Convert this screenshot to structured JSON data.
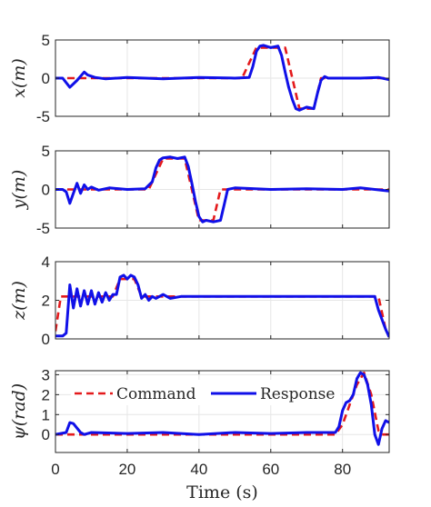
{
  "colors": {
    "command": "#e41a1c",
    "response": "#1010e8",
    "axis": "#262626",
    "grid": "#e6e6e6"
  },
  "chart_data": [
    {
      "type": "line",
      "ylabel": "x(m)",
      "xlim": [
        0,
        93
      ],
      "ylim": [
        -5,
        5
      ],
      "yticks": [
        -5,
        0,
        5
      ],
      "grid": true,
      "series": [
        {
          "name": "Command",
          "style": "dashed",
          "x": [
            0,
            52,
            54,
            56,
            64,
            66,
            68,
            72,
            74,
            76,
            93
          ],
          "y": [
            0,
            0,
            2,
            4,
            4,
            0,
            -4,
            -4,
            0,
            0,
            0
          ]
        },
        {
          "name": "Response",
          "style": "solid",
          "x": [
            0,
            2,
            4,
            6,
            8,
            9,
            11,
            14,
            20,
            30,
            40,
            50,
            54,
            55,
            56,
            57,
            58,
            60,
            62,
            63,
            64,
            65,
            66,
            67,
            68,
            70,
            72,
            73,
            74,
            75,
            76,
            80,
            85,
            90,
            93
          ],
          "y": [
            0,
            0,
            -1.2,
            -0.3,
            0.8,
            0.4,
            0.1,
            -0.1,
            0.1,
            -0.1,
            0.1,
            0,
            0.1,
            1.5,
            3.5,
            4.2,
            4.3,
            4.0,
            4.2,
            3.0,
            0.8,
            -1.2,
            -2.8,
            -4.0,
            -4.2,
            -3.8,
            -4.0,
            -2.0,
            -0.3,
            0.2,
            0,
            0,
            0,
            0.1,
            -0.2
          ]
        }
      ]
    },
    {
      "type": "line",
      "ylabel": "y(m)",
      "xlim": [
        0,
        93
      ],
      "ylim": [
        -5,
        5
      ],
      "yticks": [
        -5,
        0,
        5
      ],
      "grid": true,
      "series": [
        {
          "name": "Command",
          "style": "dashed",
          "x": [
            0,
            26,
            28,
            30,
            36,
            38,
            40,
            44,
            46,
            48,
            93
          ],
          "y": [
            0,
            0,
            2,
            4,
            4,
            0,
            -4,
            -4,
            0,
            0,
            0
          ]
        },
        {
          "name": "Response",
          "style": "solid",
          "x": [
            0,
            2,
            3,
            4,
            5,
            6,
            7,
            8,
            9,
            10,
            12,
            15,
            20,
            25,
            27,
            28,
            29,
            30,
            32,
            34,
            36,
            37,
            38,
            39,
            40,
            41,
            42,
            44,
            46,
            47,
            48,
            50,
            60,
            70,
            80,
            85,
            93
          ],
          "y": [
            0,
            0,
            -0.3,
            -1.8,
            -0.5,
            0.8,
            -0.5,
            0.6,
            0,
            0.3,
            -0.1,
            0.2,
            0,
            0.1,
            1.0,
            2.8,
            3.8,
            4.1,
            4.2,
            4.0,
            4.2,
            3.0,
            0.8,
            -1.5,
            -3.5,
            -4.2,
            -4.0,
            -4.2,
            -4.0,
            -2.0,
            0,
            0.2,
            0,
            0.1,
            0,
            0.2,
            -0.2
          ]
        }
      ]
    },
    {
      "type": "line",
      "ylabel": "z(m)",
      "xlim": [
        0,
        93
      ],
      "ylim": [
        0,
        4
      ],
      "yticks": [
        0,
        2,
        4
      ],
      "grid": true,
      "series": [
        {
          "name": "Command",
          "style": "dashed",
          "x": [
            0,
            1.5,
            3,
            16,
            18,
            22,
            24,
            26,
            90,
            92,
            93
          ],
          "y": [
            0.4,
            2.2,
            2.2,
            2.2,
            3.1,
            3.1,
            2.2,
            2.2,
            2.2,
            0.5,
            0.1
          ]
        },
        {
          "name": "Response",
          "style": "solid",
          "x": [
            0,
            2,
            3,
            4,
            5,
            6,
            7,
            8,
            9,
            10,
            11,
            12,
            13,
            14,
            15,
            16,
            17,
            18,
            19,
            20,
            21,
            22,
            23,
            24,
            25,
            26,
            27,
            28,
            30,
            32,
            35,
            40,
            45,
            50,
            60,
            70,
            80,
            89,
            90,
            92,
            93
          ],
          "y": [
            0.15,
            0.15,
            0.3,
            2.8,
            1.6,
            2.6,
            1.7,
            2.5,
            1.8,
            2.5,
            1.8,
            2.4,
            1.9,
            2.4,
            2.0,
            2.3,
            2.3,
            3.2,
            3.3,
            3.1,
            3.3,
            3.2,
            2.8,
            2.1,
            2.3,
            2.0,
            2.2,
            2.1,
            2.3,
            2.1,
            2.2,
            2.2,
            2.2,
            2.2,
            2.2,
            2.2,
            2.2,
            2.2,
            1.5,
            0.5,
            0.1
          ]
        }
      ]
    },
    {
      "type": "line",
      "ylabel": "ψ(rad)",
      "xlim": [
        0,
        93
      ],
      "ylim": [
        -0.9,
        3.2
      ],
      "yticks": [
        0,
        1,
        2,
        3
      ],
      "grid": true,
      "xlabel": "Time (s)",
      "xticks": [
        0,
        20,
        40,
        60,
        80
      ],
      "legend": {
        "position": "top",
        "entries": [
          "Command",
          "Response"
        ]
      },
      "series": [
        {
          "name": "Command",
          "style": "dashed",
          "x": [
            0,
            78,
            80,
            82,
            84,
            86,
            88,
            90,
            91,
            93
          ],
          "y": [
            0,
            0,
            0.5,
            1.5,
            2.5,
            3.1,
            2.0,
            0.2,
            0,
            0
          ]
        },
        {
          "name": "Response",
          "style": "solid",
          "x": [
            0,
            3,
            4,
            5,
            7,
            8,
            10,
            20,
            30,
            40,
            50,
            60,
            70,
            78,
            79,
            80,
            81,
            82,
            83,
            84,
            85,
            86,
            87,
            88,
            89,
            90,
            91,
            92,
            93
          ],
          "y": [
            0,
            0.1,
            0.6,
            0.55,
            0.1,
            0,
            0.1,
            0.05,
            0.1,
            0,
            0.1,
            0.05,
            0.1,
            0.1,
            0.4,
            1.2,
            1.6,
            1.7,
            2.0,
            2.8,
            3.1,
            3.0,
            2.5,
            1.5,
            0,
            -0.5,
            0.3,
            0.7,
            0.6
          ]
        }
      ]
    }
  ]
}
